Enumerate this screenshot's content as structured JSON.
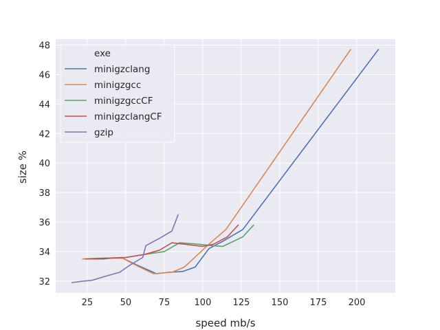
{
  "chart_data": {
    "type": "line",
    "title": "",
    "xlabel": "speed mb/s",
    "ylabel": "size %",
    "xlim": [
      4.5,
      225
    ],
    "ylim": [
      31.2,
      48.4
    ],
    "xticks": [
      25,
      50,
      75,
      100,
      125,
      150,
      175,
      200
    ],
    "yticks": [
      32,
      34,
      36,
      38,
      40,
      42,
      44,
      46,
      48
    ],
    "grid": true,
    "legend_placement": "top-left",
    "legend_title": "exe",
    "series": [
      {
        "name": "minigzclang",
        "color": "#4c72b0",
        "points": [
          [
            23,
            33.5
          ],
          [
            35,
            33.5
          ],
          [
            47,
            33.6
          ],
          [
            57,
            33.1
          ],
          [
            70,
            32.5
          ],
          [
            78,
            32.6
          ],
          [
            87,
            32.65
          ],
          [
            95,
            32.95
          ],
          [
            104,
            34.2
          ],
          [
            113,
            34.7
          ],
          [
            126,
            35.5
          ],
          [
            214,
            47.7
          ]
        ]
      },
      {
        "name": "minigzgcc",
        "color": "#dd8452",
        "points": [
          [
            22,
            33.5
          ],
          [
            35,
            33.55
          ],
          [
            48,
            33.55
          ],
          [
            58,
            33.0
          ],
          [
            68,
            32.5
          ],
          [
            80,
            32.6
          ],
          [
            88,
            32.95
          ],
          [
            104,
            34.5
          ],
          [
            115,
            35.5
          ],
          [
            196,
            47.7
          ]
        ]
      },
      {
        "name": "minigzgccCF",
        "color": "#55a868",
        "points": [
          [
            25,
            33.5
          ],
          [
            38,
            33.55
          ],
          [
            50,
            33.6
          ],
          [
            62,
            33.8
          ],
          [
            75,
            34.0
          ],
          [
            85,
            34.6
          ],
          [
            97,
            34.5
          ],
          [
            106,
            34.4
          ],
          [
            113,
            34.35
          ],
          [
            126,
            35.0
          ],
          [
            133,
            35.8
          ]
        ]
      },
      {
        "name": "minigzclangCF",
        "color": "#c44e52",
        "points": [
          [
            24,
            33.5
          ],
          [
            36,
            33.55
          ],
          [
            50,
            33.6
          ],
          [
            62,
            33.8
          ],
          [
            72,
            34.1
          ],
          [
            80,
            34.6
          ],
          [
            88,
            34.5
          ],
          [
            100,
            34.35
          ],
          [
            107,
            34.5
          ],
          [
            116,
            35.0
          ],
          [
            123,
            35.8
          ]
        ]
      },
      {
        "name": "gzip",
        "color": "#8172b3",
        "points": [
          [
            15,
            31.9
          ],
          [
            23,
            32.0
          ],
          [
            28,
            32.05
          ],
          [
            36,
            32.3
          ],
          [
            46,
            32.6
          ],
          [
            53,
            33.1
          ],
          [
            61,
            33.6
          ],
          [
            63,
            34.4
          ],
          [
            72,
            34.9
          ],
          [
            80,
            35.4
          ],
          [
            84,
            36.5
          ]
        ]
      }
    ]
  }
}
